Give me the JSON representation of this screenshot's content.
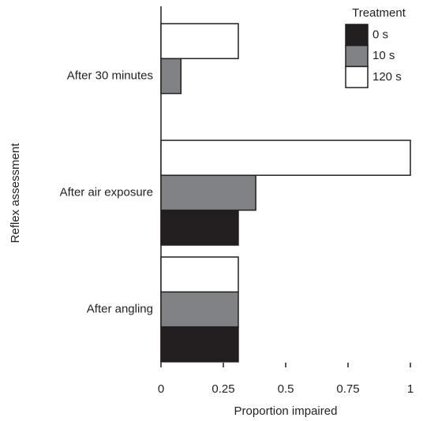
{
  "chart_data": {
    "type": "bar",
    "orientation": "horizontal",
    "categories": [
      "After 30 minutes",
      "After air exposure",
      "After angling"
    ],
    "series": [
      {
        "name": "0 s",
        "color": "#231f20",
        "values": [
          0,
          0.31,
          0.31
        ]
      },
      {
        "name": "10 s",
        "color": "#808285",
        "values": [
          0.08,
          0.38,
          0.31
        ]
      },
      {
        "name": "120 s",
        "color": "#ffffff",
        "values": [
          0.31,
          1,
          0.31
        ]
      }
    ],
    "xlim": [
      0,
      1
    ],
    "xticks": [
      0,
      0.25,
      0.5,
      0.75,
      1
    ],
    "x_label": "Proportion impaired",
    "y_label": "Reflex assessment",
    "legend_title": "Treatment",
    "legend_position": "upper right"
  }
}
